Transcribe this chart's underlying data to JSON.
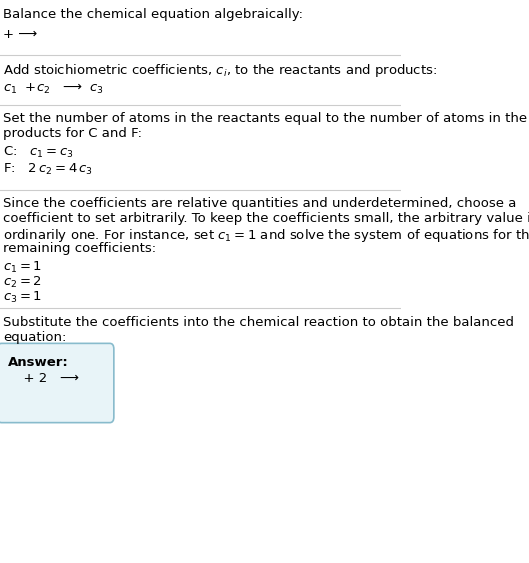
{
  "title": "Balance the chemical equation algebraically:",
  "line1": "+ ⟶",
  "section2_header": "Add stoichiometric coefficients, $c_i$, to the reactants and products:",
  "section2_line": "$c_1$  +$c_2$   ⟶  $c_3$",
  "section3_header": "Set the number of atoms in the reactants equal to the number of atoms in the\nproducts for C and F:",
  "section3_C": "C:   $c_1 = c_3$",
  "section3_F": "F:   $2\\,c_2 = 4\\,c_3$",
  "section4_header": "Since the coefficients are relative quantities and underdetermined, choose a\ncoefficient to set arbitrarily. To keep the coefficients small, the arbitrary value is\nordinarily one. For instance, set $c_1 = 1$ and solve the system of equations for the\nremaining coefficients:",
  "section4_c1": "$c_1 = 1$",
  "section4_c2": "$c_2 = 2$",
  "section4_c3": "$c_3 = 1$",
  "section5_header": "Substitute the coefficients into the chemical reaction to obtain the balanced\nequation:",
  "answer_label": "Answer:",
  "answer_line": "  + 2   ⟶",
  "bg_color": "#ffffff",
  "text_color": "#000000",
  "line_color": "#cccccc",
  "box_bg": "#e8f4f8",
  "box_border": "#88bbcc",
  "font_size_main": 10,
  "font_size_section": 10
}
